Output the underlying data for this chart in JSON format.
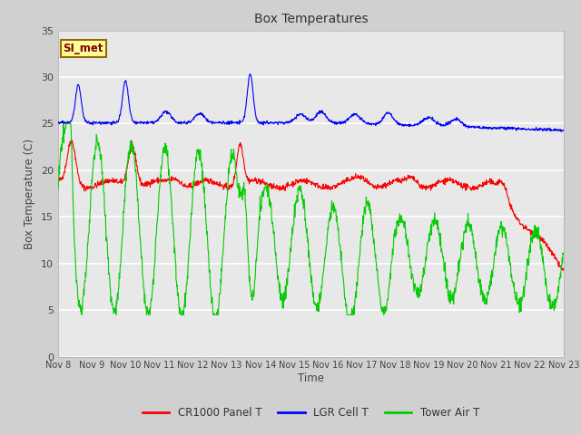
{
  "title": "Box Temperatures",
  "xlabel": "Time",
  "ylabel": "Box Temperature (C)",
  "ylim": [
    0,
    35
  ],
  "yticks": [
    0,
    5,
    10,
    15,
    20,
    25,
    30,
    35
  ],
  "xtick_labels": [
    "Nov 8",
    "Nov 9",
    "Nov 10",
    "Nov 11",
    "Nov 12",
    "Nov 13",
    "Nov 14",
    "Nov 15",
    "Nov 16",
    "Nov 17",
    "Nov 18",
    "Nov 19",
    "Nov 20",
    "Nov 21",
    "Nov 22",
    "Nov 23"
  ],
  "fig_bg_color": "#d0d0d0",
  "plot_bg_color": "#e8e8e8",
  "grid_color": "white",
  "cr1000_color": "red",
  "lgr_color": "blue",
  "tower_color": "#00cc00",
  "annotation_text": "SI_met",
  "annotation_bg": "#ffff99",
  "annotation_border": "#996600",
  "annotation_text_color": "#800000"
}
